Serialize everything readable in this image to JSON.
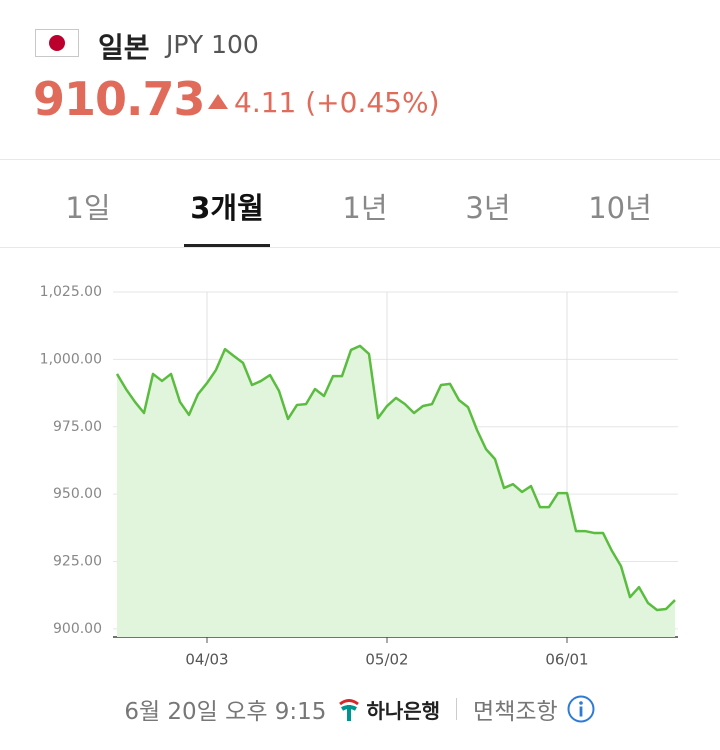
{
  "header": {
    "country": "일본",
    "currency": "JPY 100",
    "price": "910.73",
    "change": "4.11 (+0.45%)"
  },
  "tabs": {
    "items": [
      "1일",
      "3개월",
      "1년",
      "3년",
      "10년"
    ],
    "active": 1
  },
  "chart_data": {
    "type": "area",
    "color": "#5bbd3f",
    "fill": "#e0f5dc",
    "grid": true,
    "categories": [
      null,
      null,
      null,
      null,
      null,
      null,
      null,
      null,
      null,
      null,
      "04/03",
      null,
      null,
      null,
      null,
      null,
      null,
      null,
      null,
      null,
      null,
      null,
      null,
      null,
      null,
      null,
      null,
      null,
      null,
      null,
      "05/02",
      null,
      null,
      null,
      null,
      null,
      null,
      null,
      null,
      null,
      null,
      null,
      null,
      null,
      null,
      null,
      null,
      null,
      null,
      null,
      "06/01",
      null,
      null,
      null,
      null,
      null,
      null,
      null,
      null,
      null,
      null,
      null,
      null
    ],
    "values": [
      994.6,
      989.0,
      984.2,
      980.1,
      994.6,
      992.0,
      994.6,
      984.2,
      979.4,
      987.1,
      991.2,
      996.1,
      1003.8,
      1001.2,
      998.7,
      990.5,
      992.0,
      994.2,
      988.3,
      977.9,
      983.1,
      983.4,
      989.0,
      986.4,
      993.8,
      993.8,
      1003.5,
      1005.0,
      1002.0,
      978.2,
      982.7,
      985.7,
      983.4,
      980.1,
      982.7,
      983.4,
      990.5,
      990.9,
      984.9,
      982.3,
      973.8,
      966.7,
      963.0,
      952.3,
      953.7,
      950.8,
      953.0,
      945.2,
      945.2,
      950.4,
      950.4,
      936.3,
      936.3,
      935.6,
      935.6,
      928.9,
      923.3,
      911.8,
      915.5,
      909.6,
      907.0,
      907.4,
      910.7
    ],
    "ylim": [
      897,
      1025
    ],
    "yticks": [
      {
        "value": 900,
        "label": "900.00"
      },
      {
        "value": 925,
        "label": "925.00"
      },
      {
        "value": 950,
        "label": "950.00"
      },
      {
        "value": 975,
        "label": "975.00"
      },
      {
        "value": 1000,
        "label": "1,000.00"
      },
      {
        "value": 1025,
        "label": "1,025.00"
      }
    ]
  },
  "footer": {
    "timestamp": "6월 20일 오후 9:15",
    "bank": "하나은행",
    "disclaimer": "면책조항"
  }
}
